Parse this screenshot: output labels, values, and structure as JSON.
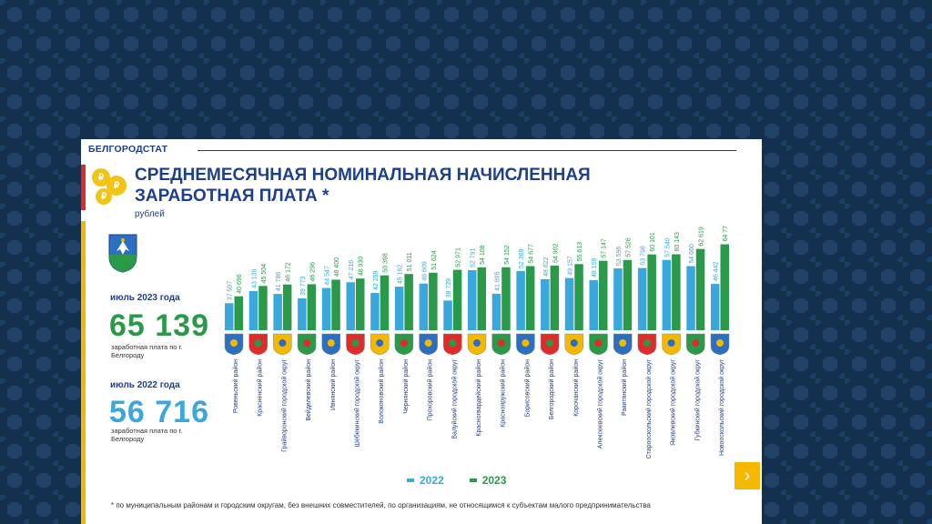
{
  "header": {
    "brand": "БЕЛГОРОДСТАТ",
    "title_line1": "СРЕДНЕМЕСЯЧНАЯ НОМИНАЛЬНАЯ НАЧИСЛЕННАЯ",
    "title_line2": "ЗАРАБОТНАЯ ПЛАТА *",
    "subtitle": "рублей"
  },
  "summary": {
    "y2023_label": "июль 2023 года",
    "y2023_value": "65 139",
    "y2023_note": "заработная плата по г. Белгороду",
    "y2022_label": "июль 2022 года",
    "y2022_value": "56 716",
    "y2022_note": "заработная плата по г. Белгороду"
  },
  "legend": {
    "s2022": "2022",
    "s2023": "2023"
  },
  "footnote": "* по муниципальным районам и городским округам, без внешних совместителей, по организациям, не относящимся к субъектам малого предпринимательства",
  "colors": {
    "s2022": "#3aa7dd",
    "s2023": "#2a9a4a",
    "brand": "#1d3f8c",
    "accent": "#f5b800"
  },
  "icons": {
    "crest": "belgorod-crest-icon",
    "coins": "ruble-coins-icon",
    "next": "chevron-right-icon"
  },
  "chart_data": {
    "type": "bar",
    "categories": [
      "Ровеньский район",
      "Красненский район",
      "Грайворонский городской округ",
      "Вейделевский район",
      "Ивнянский район",
      "Шебекинский городской округ",
      "Волоконовский район",
      "Чернянский район",
      "Прохоровский район",
      "Валуйский городской округ",
      "Красногвардейский район",
      "Краснояружский район",
      "Борисовский район",
      "Белгородский район",
      "Корочанский район",
      "Алексеевский городской округ",
      "Ракитянский район",
      "Старооскольский городской округ",
      "Яковлевский городской округ",
      "Губкинский городской округ",
      "Новооскольский городской округ"
    ],
    "series": [
      {
        "name": "2022",
        "values": [
          37507,
          43139,
          41786,
          39773,
          44547,
          47216,
          42259,
          45162,
          46609,
          38739,
          52791,
          41895,
          52369,
          48622,
          49157,
          48159,
          53596,
          53798,
          57540,
          54660,
          46442
        ],
        "labels": [
          "37 507",
          "43 139",
          "41 786",
          "39 773",
          "44 547",
          "47 216",
          "42 259",
          "45 162",
          "46 609",
          "38 739",
          "52 791",
          "41 895",
          "52 369",
          "48 622",
          "49 157",
          "48 159",
          "53 596",
          "53 798",
          "57 540",
          "54 660",
          "46 442"
        ]
      },
      {
        "name": "2023",
        "values": [
          40696,
          45504,
          46172,
          46296,
          48400,
          48930,
          50398,
          51011,
          51624,
          52971,
          54108,
          54152,
          54677,
          54902,
          55613,
          57147,
          57526,
          60101,
          60143,
          62619,
          64776
        ],
        "labels": [
          "40 696",
          "45 504",
          "46 172",
          "46 296",
          "48 400",
          "48 930",
          "50 398",
          "51 011",
          "51 624",
          "52 971",
          "54 108",
          "54 152",
          "54 677",
          "54 902",
          "55 613",
          "57 147",
          "57 526",
          "60 101",
          "60 143",
          "62 619",
          "64 776"
        ]
      }
    ],
    "ylim": [
      25000,
      65000
    ],
    "legend_position": "bottom"
  }
}
